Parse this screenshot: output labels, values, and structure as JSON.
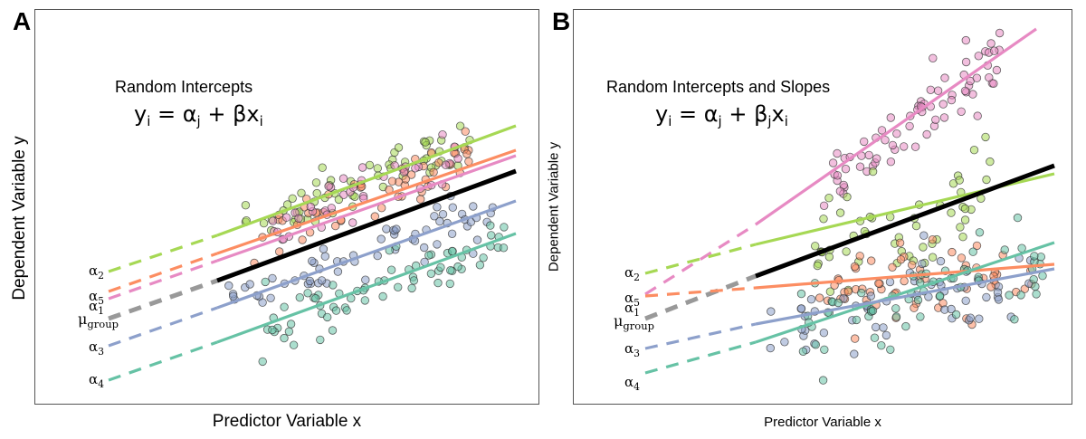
{
  "panels": [
    {
      "letter": "A",
      "title": "Random Intercepts",
      "equation": {
        "y": "y",
        "i": "i",
        "eq": " = ",
        "alpha": "α",
        "j": "j",
        "plus": " + ",
        "beta": "β",
        "x": "x",
        "beta_sub": ""
      },
      "xlabel": "Predictor Variable x",
      "ylabel": "Dependent Variable y",
      "labels": [
        {
          "sym": "α",
          "sub": "2"
        },
        {
          "sym": "α",
          "sub": "5"
        },
        {
          "sym": "α",
          "sub": "1"
        },
        {
          "sym": "μ",
          "sub": "group"
        },
        {
          "sym": "α",
          "sub": "3"
        },
        {
          "sym": "α",
          "sub": "4"
        }
      ]
    },
    {
      "letter": "B",
      "title": "Random Intercepts and Slopes",
      "equation": {
        "y": "y",
        "i": "i",
        "eq": " = ",
        "alpha": "α",
        "j": "j",
        "plus": " + ",
        "beta": "β",
        "x": "x",
        "beta_sub": "j"
      },
      "xlabel": "Predictor Variable x",
      "ylabel": "Dependent Variable y",
      "labels": [
        {
          "sym": "α",
          "sub": "2"
        },
        {
          "sym": "α",
          "sub": "5"
        },
        {
          "sym": "α",
          "sub": "1"
        },
        {
          "sym": "μ",
          "sub": "group"
        },
        {
          "sym": "α",
          "sub": "3"
        },
        {
          "sym": "α",
          "sub": "4"
        }
      ]
    }
  ],
  "colors": {
    "g1": "#e78ac3",
    "g2": "#a6d854",
    "g3": "#8da0cb",
    "g4": "#66c2a5",
    "g5": "#fc8d62",
    "mean": "#000000",
    "mean_dash": "#999999"
  }
}
